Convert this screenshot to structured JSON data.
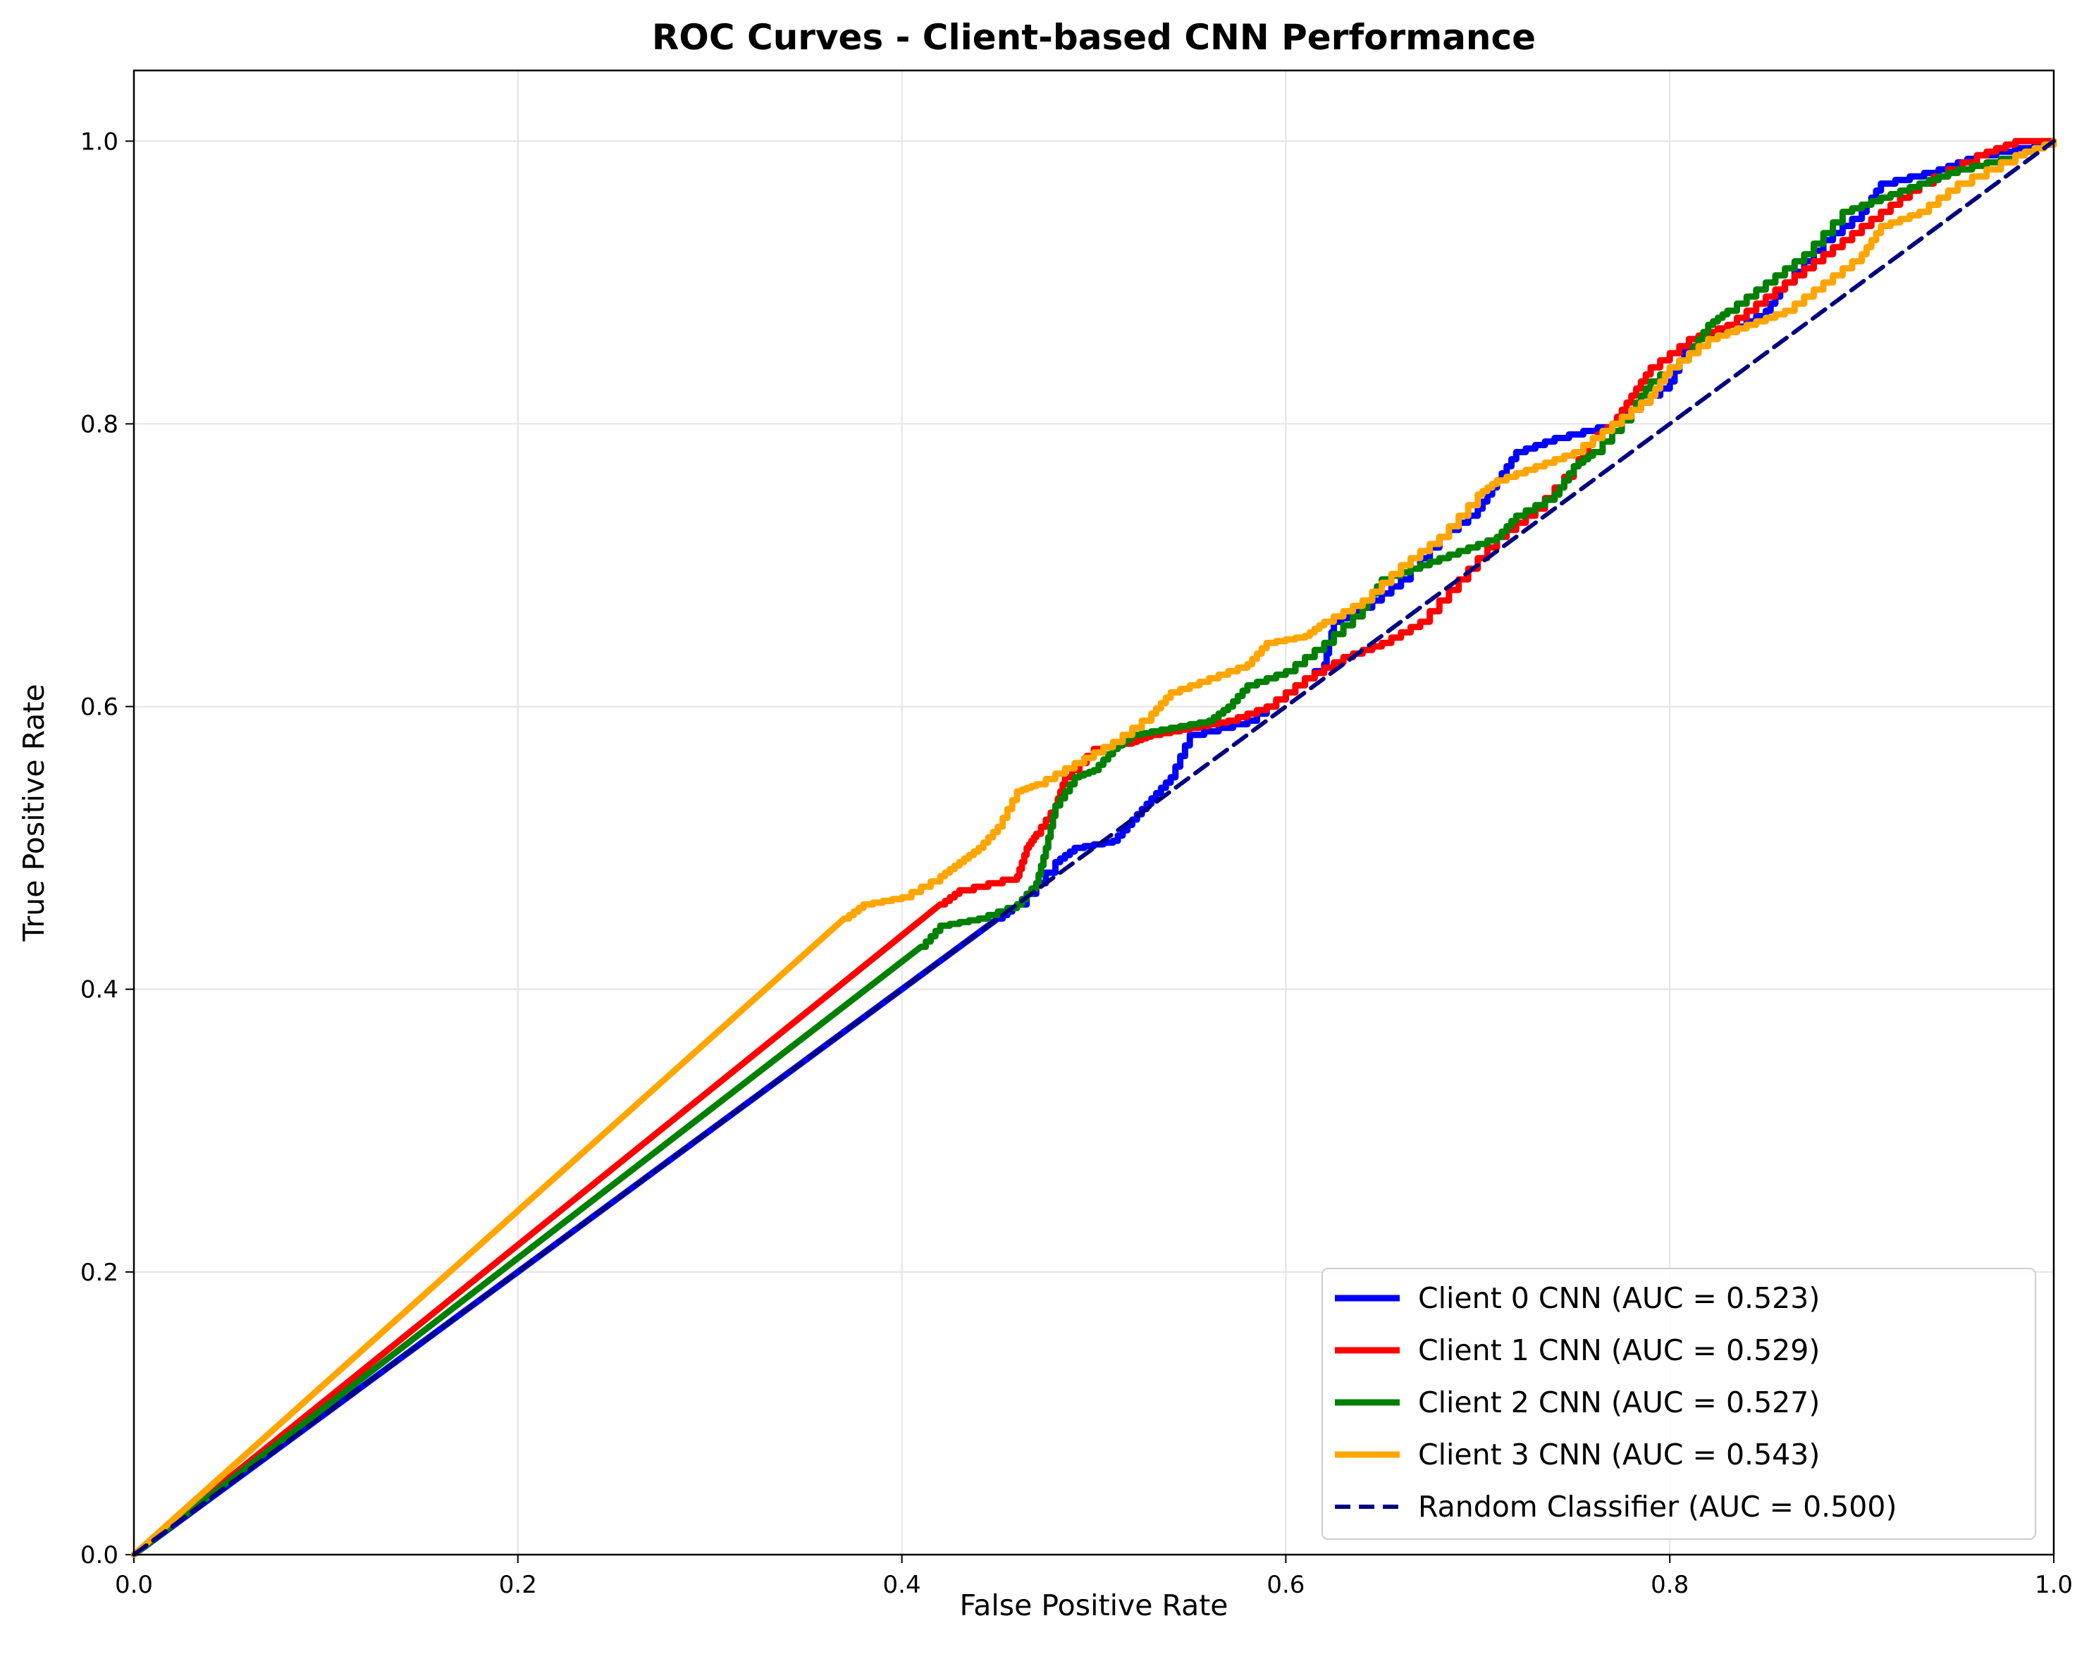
{
  "chart_data": {
    "type": "line",
    "title": "ROC Curves - Client-based CNN Performance",
    "xlabel": "False Positive Rate",
    "ylabel": "True Positive Rate",
    "xlim": [
      0.0,
      1.0
    ],
    "ylim": [
      0.0,
      1.05
    ],
    "xticks": [
      "0.0",
      "0.2",
      "0.4",
      "0.6",
      "0.8",
      "1.0"
    ],
    "yticks": [
      "0.0",
      "0.2",
      "0.4",
      "0.6",
      "0.8",
      "1.0"
    ],
    "grid": true,
    "legend_position": "lower-right",
    "series": [
      {
        "name": "Client 0 CNN (AUC = 0.523)",
        "color": "#0000ff",
        "dashed": false,
        "points": [
          [
            0,
            0
          ],
          [
            0.45,
            0.45
          ],
          [
            0.46,
            0.46
          ],
          [
            0.48,
            0.49
          ],
          [
            0.49,
            0.5
          ],
          [
            0.51,
            0.505
          ],
          [
            0.52,
            0.52
          ],
          [
            0.53,
            0.535
          ],
          [
            0.54,
            0.55
          ],
          [
            0.55,
            0.58
          ],
          [
            0.58,
            0.59
          ],
          [
            0.6,
            0.61
          ],
          [
            0.62,
            0.63
          ],
          [
            0.625,
            0.66
          ],
          [
            0.64,
            0.67
          ],
          [
            0.66,
            0.69
          ],
          [
            0.68,
            0.72
          ],
          [
            0.7,
            0.74
          ],
          [
            0.71,
            0.76
          ],
          [
            0.72,
            0.78
          ],
          [
            0.74,
            0.79
          ],
          [
            0.77,
            0.8
          ],
          [
            0.78,
            0.81
          ],
          [
            0.8,
            0.83
          ],
          [
            0.81,
            0.86
          ],
          [
            0.83,
            0.865
          ],
          [
            0.85,
            0.88
          ],
          [
            0.86,
            0.9
          ],
          [
            0.88,
            0.93
          ],
          [
            0.9,
            0.95
          ],
          [
            0.91,
            0.97
          ],
          [
            0.94,
            0.98
          ],
          [
            0.96,
            0.99
          ],
          [
            1.0,
            1.0
          ]
        ]
      },
      {
        "name": "Client 1 CNN (AUC = 0.529)",
        "color": "#ff0000",
        "dashed": false,
        "points": [
          [
            0,
            0
          ],
          [
            0.42,
            0.46
          ],
          [
            0.43,
            0.47
          ],
          [
            0.46,
            0.48
          ],
          [
            0.465,
            0.5
          ],
          [
            0.47,
            0.51
          ],
          [
            0.48,
            0.53
          ],
          [
            0.485,
            0.55
          ],
          [
            0.5,
            0.57
          ],
          [
            0.52,
            0.575
          ],
          [
            0.53,
            0.58
          ],
          [
            0.55,
            0.585
          ],
          [
            0.57,
            0.59
          ],
          [
            0.59,
            0.6
          ],
          [
            0.61,
            0.62
          ],
          [
            0.63,
            0.635
          ],
          [
            0.65,
            0.645
          ],
          [
            0.67,
            0.66
          ],
          [
            0.69,
            0.69
          ],
          [
            0.71,
            0.72
          ],
          [
            0.73,
            0.74
          ],
          [
            0.75,
            0.77
          ],
          [
            0.76,
            0.79
          ],
          [
            0.77,
            0.8
          ],
          [
            0.78,
            0.82
          ],
          [
            0.79,
            0.84
          ],
          [
            0.81,
            0.86
          ],
          [
            0.83,
            0.87
          ],
          [
            0.85,
            0.89
          ],
          [
            0.87,
            0.91
          ],
          [
            0.89,
            0.93
          ],
          [
            0.91,
            0.95
          ],
          [
            0.93,
            0.97
          ],
          [
            0.96,
            0.99
          ],
          [
            0.98,
            1.0
          ],
          [
            1.0,
            1.0
          ]
        ]
      },
      {
        "name": "Client 2 CNN (AUC = 0.527)",
        "color": "#008000",
        "dashed": false,
        "points": [
          [
            0,
            0
          ],
          [
            0.41,
            0.43
          ],
          [
            0.42,
            0.445
          ],
          [
            0.44,
            0.45
          ],
          [
            0.46,
            0.46
          ],
          [
            0.47,
            0.475
          ],
          [
            0.475,
            0.5
          ],
          [
            0.48,
            0.53
          ],
          [
            0.49,
            0.55
          ],
          [
            0.5,
            0.555
          ],
          [
            0.51,
            0.57
          ],
          [
            0.52,
            0.58
          ],
          [
            0.54,
            0.585
          ],
          [
            0.56,
            0.59
          ],
          [
            0.57,
            0.6
          ],
          [
            0.58,
            0.615
          ],
          [
            0.6,
            0.625
          ],
          [
            0.62,
            0.645
          ],
          [
            0.64,
            0.67
          ],
          [
            0.65,
            0.69
          ],
          [
            0.67,
            0.7
          ],
          [
            0.69,
            0.71
          ],
          [
            0.71,
            0.72
          ],
          [
            0.72,
            0.735
          ],
          [
            0.74,
            0.75
          ],
          [
            0.75,
            0.77
          ],
          [
            0.76,
            0.78
          ],
          [
            0.78,
            0.81
          ],
          [
            0.79,
            0.83
          ],
          [
            0.81,
            0.85
          ],
          [
            0.82,
            0.87
          ],
          [
            0.83,
            0.88
          ],
          [
            0.85,
            0.9
          ],
          [
            0.87,
            0.92
          ],
          [
            0.89,
            0.95
          ],
          [
            0.91,
            0.96
          ],
          [
            0.93,
            0.97
          ],
          [
            0.95,
            0.98
          ],
          [
            0.98,
            0.99
          ],
          [
            1.0,
            1.0
          ]
        ]
      },
      {
        "name": "Client 3 CNN (AUC = 0.543)",
        "color": "#ffa500",
        "dashed": false,
        "points": [
          [
            0,
            0
          ],
          [
            0.37,
            0.45
          ],
          [
            0.38,
            0.46
          ],
          [
            0.4,
            0.465
          ],
          [
            0.42,
            0.48
          ],
          [
            0.43,
            0.49
          ],
          [
            0.44,
            0.5
          ],
          [
            0.45,
            0.515
          ],
          [
            0.46,
            0.54
          ],
          [
            0.47,
            0.545
          ],
          [
            0.49,
            0.56
          ],
          [
            0.51,
            0.575
          ],
          [
            0.53,
            0.595
          ],
          [
            0.54,
            0.61
          ],
          [
            0.56,
            0.62
          ],
          [
            0.58,
            0.63
          ],
          [
            0.59,
            0.645
          ],
          [
            0.61,
            0.65
          ],
          [
            0.62,
            0.66
          ],
          [
            0.64,
            0.675
          ],
          [
            0.66,
            0.7
          ],
          [
            0.68,
            0.72
          ],
          [
            0.7,
            0.75
          ],
          [
            0.71,
            0.76
          ],
          [
            0.73,
            0.77
          ],
          [
            0.75,
            0.78
          ],
          [
            0.77,
            0.8
          ],
          [
            0.79,
            0.82
          ],
          [
            0.8,
            0.84
          ],
          [
            0.82,
            0.86
          ],
          [
            0.84,
            0.87
          ],
          [
            0.86,
            0.88
          ],
          [
            0.88,
            0.9
          ],
          [
            0.9,
            0.92
          ],
          [
            0.91,
            0.94
          ],
          [
            0.93,
            0.95
          ],
          [
            0.95,
            0.97
          ],
          [
            0.98,
            0.99
          ],
          [
            1.0,
            1.0
          ]
        ]
      },
      {
        "name": "Random Classifier (AUC = 0.500)",
        "color": "#000080",
        "dashed": true,
        "points": [
          [
            0,
            0
          ],
          [
            1,
            1
          ]
        ]
      }
    ]
  }
}
